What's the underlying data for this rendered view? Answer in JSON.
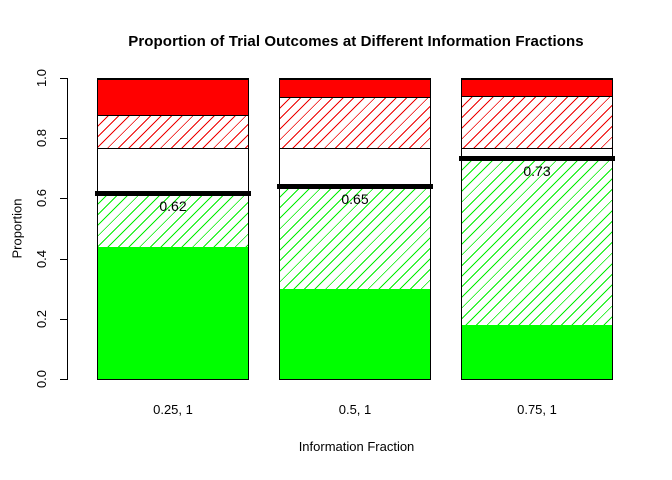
{
  "title": "Proportion of Trial Outcomes at Different Information Fractions",
  "y_axis": {
    "label": "Proportion",
    "ticks": [
      {
        "label": "0.0",
        "value": 0.0
      },
      {
        "label": "0.2",
        "value": 0.2
      },
      {
        "label": "0.4",
        "value": 0.4
      },
      {
        "label": "0.6",
        "value": 0.6
      },
      {
        "label": "0.8",
        "value": 0.8
      },
      {
        "label": "1.0",
        "value": 1.0
      }
    ]
  },
  "x_axis": {
    "label": "Information Fraction"
  },
  "chart_data": {
    "type": "bar",
    "stacked": true,
    "title": "Proportion of Trial Outcomes at Different Information Fractions",
    "xlabel": "Information Fraction",
    "ylabel": "Proportion",
    "ylim": [
      0,
      1
    ],
    "grid": false,
    "legend": "none",
    "categories": [
      "0.25, 1",
      "0.5, 1",
      "0.75, 1"
    ],
    "series": [
      {
        "name": "solid-green",
        "pattern": "solid",
        "color": "#00FF00",
        "values": [
          0.44,
          0.3,
          0.18
        ]
      },
      {
        "name": "green-hatch",
        "pattern": "hatch",
        "color": "#00EE00",
        "values": [
          0.18,
          0.345,
          0.555
        ]
      },
      {
        "name": "red-dense-crosshatch",
        "pattern": "crosshatch",
        "color": "#EE0000",
        "values": [
          0.15,
          0.125,
          0.035
        ]
      },
      {
        "name": "red-hatch",
        "pattern": "hatch",
        "color": "#EE0000",
        "values": [
          0.11,
          0.17,
          0.175
        ]
      },
      {
        "name": "solid-red",
        "pattern": "solid",
        "color": "#FF0000",
        "values": [
          0.12,
          0.06,
          0.055
        ]
      }
    ],
    "threshold_lines": [
      {
        "label": "0.62"
      },
      {
        "label": "0.65"
      },
      {
        "label": "0.73"
      }
    ],
    "threshold_line_color": "#000000",
    "background": "#FFFFFF"
  }
}
